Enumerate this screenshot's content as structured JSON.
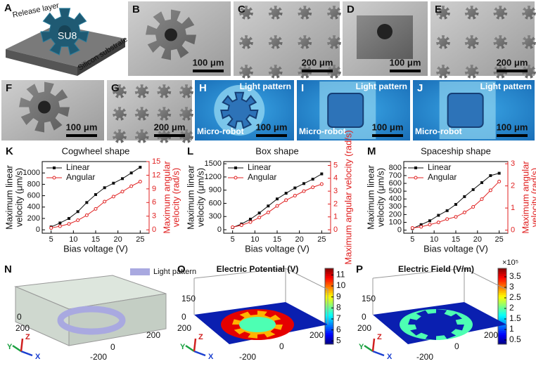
{
  "panels": [
    {
      "label": "A",
      "texts": [
        "Release layer",
        "SU8",
        "Silicon substrate"
      ]
    },
    {
      "label": "B",
      "scale": "100 μm"
    },
    {
      "label": "C",
      "scale": "200 μm"
    },
    {
      "label": "D",
      "scale": "100 μm"
    },
    {
      "label": "E",
      "scale": "200 μm"
    },
    {
      "label": "F",
      "scale": "100 μm"
    },
    {
      "label": "G",
      "scale": "200 μm"
    },
    {
      "label": "H",
      "texts": [
        "Light pattern",
        "Micro-robot"
      ],
      "scale": "100 μm"
    },
    {
      "label": "I",
      "texts": [
        "Light pattern",
        "Micro-robot"
      ],
      "scale": "100 μm"
    },
    {
      "label": "J",
      "texts": [
        "Light pattern",
        "Micro-robot"
      ],
      "scale": "100 μm"
    }
  ],
  "chart_data": [
    {
      "type": "line",
      "panel": "K",
      "title": "Cogwheel shape",
      "xlabel": "Bias voltage (V)",
      "ylabel": [
        "Maximum linear",
        "velocity (μm/s)"
      ],
      "y2label": [
        "Maximum angular",
        "velocity (rad/s)"
      ],
      "x": [
        5,
        7,
        9,
        11,
        13,
        15,
        17,
        19,
        21,
        23,
        25
      ],
      "xlim": [
        3,
        27
      ],
      "xticks": [
        5,
        10,
        15,
        20,
        25
      ],
      "ylim": [
        -60,
        1200
      ],
      "yticks": [
        0,
        200,
        400,
        600,
        800,
        1000
      ],
      "y2lim": [
        -0.75,
        15
      ],
      "y2ticks": [
        0,
        3,
        6,
        9,
        12,
        15
      ],
      "y2color": "#e02020",
      "legend": "upper left",
      "series": [
        {
          "name": "Linear",
          "color": "#111111",
          "marker": "square",
          "values": [
            50,
            120,
            200,
            320,
            480,
            620,
            740,
            820,
            900,
            1000,
            1100
          ]
        },
        {
          "name": "Angular",
          "color": "#e02020",
          "marker": "circle",
          "axis": "y2",
          "values": [
            0.4,
            0.8,
            1.3,
            2.1,
            3.2,
            4.6,
            6.2,
            7.3,
            8.4,
            9.6,
            10.6
          ]
        }
      ]
    },
    {
      "type": "line",
      "panel": "L",
      "title": "Box shape",
      "xlabel": "Bias voltage (V)",
      "ylabel": [
        "Maximum linear",
        "velocity (μm/s)"
      ],
      "y2label": [
        "Maximum angular velocity (rad/s)"
      ],
      "x": [
        5,
        7,
        9,
        11,
        13,
        15,
        17,
        19,
        21,
        23,
        25
      ],
      "xlim": [
        3,
        27
      ],
      "xticks": [
        5,
        10,
        15,
        20,
        25
      ],
      "ylim": [
        -80,
        1550
      ],
      "yticks": [
        0,
        300,
        600,
        900,
        1200,
        1500
      ],
      "y2lim": [
        -0.27,
        5.3
      ],
      "y2ticks": [
        0,
        1,
        2,
        3,
        4,
        5
      ],
      "y2color": "#e02020",
      "legend": "upper left",
      "series": [
        {
          "name": "Linear",
          "color": "#111111",
          "marker": "square",
          "values": [
            50,
            130,
            240,
            380,
            540,
            700,
            830,
            950,
            1050,
            1150,
            1270
          ]
        },
        {
          "name": "Angular",
          "color": "#e02020",
          "marker": "circle",
          "axis": "y2",
          "values": [
            0.2,
            0.35,
            0.6,
            0.95,
            1.35,
            1.85,
            2.3,
            2.65,
            3.0,
            3.3,
            3.55
          ]
        }
      ]
    },
    {
      "type": "line",
      "panel": "M",
      "title": "Spaceship shape",
      "xlabel": "Bias voltage (V)",
      "ylabel": [
        "Maximum linear",
        "velocity (μm/s)"
      ],
      "y2label": [
        "Maximum angular",
        "velocity (rad/s)"
      ],
      "x": [
        5,
        7,
        9,
        11,
        13,
        15,
        17,
        19,
        21,
        23,
        25
      ],
      "xlim": [
        3,
        27
      ],
      "xticks": [
        5,
        10,
        15,
        20,
        25
      ],
      "ylim": [
        -40,
        880
      ],
      "yticks": [
        0,
        100,
        200,
        300,
        400,
        500,
        600,
        700,
        800
      ],
      "y2lim": [
        -0.14,
        3.1
      ],
      "y2ticks": [
        0,
        1,
        2,
        3
      ],
      "y2color": "#e02020",
      "legend": "upper left",
      "series": [
        {
          "name": "Linear",
          "color": "#111111",
          "marker": "square",
          "values": [
            20,
            70,
            120,
            190,
            250,
            330,
            430,
            520,
            610,
            700,
            730
          ]
        },
        {
          "name": "Angular",
          "color": "#e02020",
          "marker": "circle",
          "axis": "y2",
          "values": [
            0.1,
            0.15,
            0.25,
            0.35,
            0.5,
            0.6,
            0.8,
            1.05,
            1.4,
            1.8,
            2.2
          ]
        }
      ]
    },
    {
      "type": "colorbar",
      "panel": "O",
      "colormap": "jet",
      "clim": [
        4.7,
        11.6
      ],
      "cticks": [
        5,
        6,
        7,
        8,
        9,
        10,
        11
      ]
    },
    {
      "type": "colorbar",
      "panel": "P",
      "colormap": "jet",
      "clim": [
        0.3,
        3.9
      ],
      "cticks": [
        0.5,
        1,
        1.5,
        2,
        2.5,
        3,
        3.5
      ],
      "multiplier": "×10⁵"
    }
  ],
  "views": [
    {
      "label": "N",
      "legend": "Light pattern",
      "ticks": [
        "0",
        "200",
        "200",
        "0",
        "-200"
      ],
      "axes": [
        "X",
        "Y",
        "Z"
      ]
    },
    {
      "label": "O",
      "title": "Electric Potential (V)",
      "ticks": [
        "150",
        "0",
        "200",
        "200",
        "0",
        "-200"
      ],
      "axes": [
        "X",
        "Y",
        "Z"
      ]
    },
    {
      "label": "P",
      "title": "Electric Field (V/m)",
      "ticks": [
        "150",
        "0",
        "200",
        "200",
        "0",
        "-200"
      ],
      "axes": [
        "X",
        "Y",
        "Z"
      ]
    }
  ]
}
